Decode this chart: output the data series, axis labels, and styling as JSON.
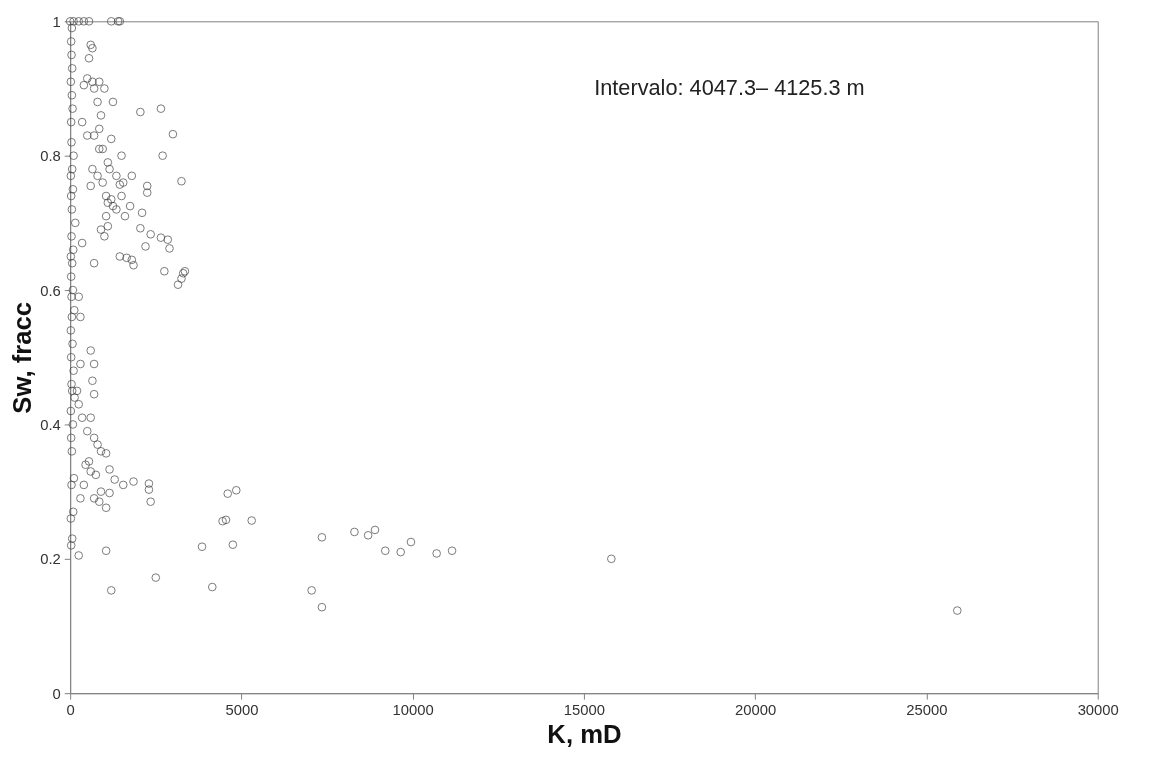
{
  "chart_data": {
    "type": "scatter",
    "xlabel": "K, mD",
    "ylabel": "Sw, fracc",
    "annotations": [
      "Intervalo: 4047.3– 4125.3 m"
    ],
    "xlim": [
      0,
      30000
    ],
    "ylim": [
      0,
      1
    ],
    "xticks": [
      0,
      5000,
      10000,
      15000,
      20000,
      25000,
      30000
    ],
    "yticks": [
      0,
      0.2,
      0.4,
      0.6,
      0.8,
      1
    ],
    "grid": false,
    "legend": false,
    "marker": "circle",
    "series": [
      {
        "color": "#404040",
        "x": [
          15800,
          25900,
          11150,
          10700,
          9950,
          9650,
          9200,
          8900,
          8700,
          8300,
          7350,
          7350,
          7050,
          5300,
          4850,
          4600,
          4550,
          4450,
          4750,
          4150,
          3850,
          2500,
          1200,
          1050,
          2350,
          2300,
          2300,
          1850,
          1550,
          1300,
          1150,
          1050,
          1150,
          1050,
          900,
          850,
          700,
          750,
          600,
          550,
          450,
          400,
          300,
          250,
          800,
          900,
          700,
          500,
          350,
          600,
          700,
          650,
          700,
          600,
          300,
          250,
          200,
          300,
          250,
          350,
          3300,
          3350,
          3250,
          3150,
          2750,
          3250,
          3000,
          2650,
          2700,
          2050,
          2250,
          2250,
          2100,
          1800,
          1850,
          1650,
          1450,
          2200,
          2350,
          2050,
          2850,
          2900,
          2650,
          1750,
          1500,
          1500,
          1350,
          1250,
          1200,
          1100,
          1000,
          900,
          1050,
          950,
          1050,
          1150,
          1200,
          1100,
          950,
          850,
          900,
          800,
          700,
          650,
          550,
          600,
          650,
          500,
          400,
          350,
          500,
          650,
          600,
          800,
          700,
          850,
          1250,
          1450,
          1600,
          1350,
          1550,
          1100,
          1800,
          1000,
          700,
          850,
          0,
          100,
          250,
          400,
          550,
          1200,
          1400,
          1450,
          30,
          60,
          20,
          90,
          40,
          110,
          50,
          30,
          80,
          20,
          130,
          60,
          40,
          100,
          30,
          70,
          20,
          50,
          120,
          40,
          80,
          30,
          60,
          20,
          90,
          40,
          150,
          50,
          30,
          80,
          20,
          60,
          100,
          40,
          30,
          70,
          50,
          20,
          60,
          40,
          30,
          50
        ],
        "values": [
          0.2,
          0.123,
          0.212,
          0.208,
          0.225,
          0.21,
          0.212,
          0.243,
          0.235,
          0.24,
          0.232,
          0.128,
          0.153,
          0.257,
          0.302,
          0.297,
          0.258,
          0.256,
          0.221,
          0.158,
          0.218,
          0.172,
          0.153,
          0.212,
          0.285,
          0.303,
          0.312,
          0.315,
          0.31,
          0.318,
          0.333,
          0.357,
          0.298,
          0.276,
          0.3,
          0.285,
          0.29,
          0.325,
          0.33,
          0.345,
          0.34,
          0.31,
          0.29,
          0.205,
          0.37,
          0.36,
          0.38,
          0.39,
          0.41,
          0.41,
          0.445,
          0.465,
          0.49,
          0.51,
          0.49,
          0.43,
          0.45,
          0.56,
          0.59,
          0.67,
          0.625,
          0.628,
          0.617,
          0.608,
          0.628,
          0.762,
          0.832,
          0.87,
          0.8,
          0.865,
          0.755,
          0.745,
          0.715,
          0.645,
          0.637,
          0.648,
          0.65,
          0.665,
          0.683,
          0.692,
          0.675,
          0.662,
          0.678,
          0.725,
          0.74,
          0.8,
          0.77,
          0.725,
          0.735,
          0.695,
          0.68,
          0.69,
          0.71,
          0.76,
          0.74,
          0.78,
          0.825,
          0.79,
          0.81,
          0.84,
          0.86,
          0.88,
          0.9,
          0.91,
          0.945,
          0.965,
          0.96,
          0.915,
          0.905,
          0.85,
          0.83,
          0.78,
          0.755,
          0.77,
          0.83,
          0.81,
          0.88,
          0.757,
          0.71,
          0.72,
          0.76,
          0.73,
          0.77,
          0.9,
          0.64,
          0.91,
          1,
          1,
          1,
          1,
          1,
          1,
          1,
          1,
          0.22,
          0.23,
          0.26,
          0.27,
          0.31,
          0.32,
          0.36,
          0.38,
          0.4,
          0.42,
          0.44,
          0.45,
          0.46,
          0.48,
          0.5,
          0.52,
          0.54,
          0.56,
          0.57,
          0.59,
          0.6,
          0.62,
          0.64,
          0.65,
          0.66,
          0.68,
          0.7,
          0.72,
          0.74,
          0.75,
          0.77,
          0.78,
          0.8,
          0.82,
          0.85,
          0.87,
          0.89,
          0.91,
          0.93,
          0.95,
          0.97,
          0.99
        ]
      }
    ]
  }
}
